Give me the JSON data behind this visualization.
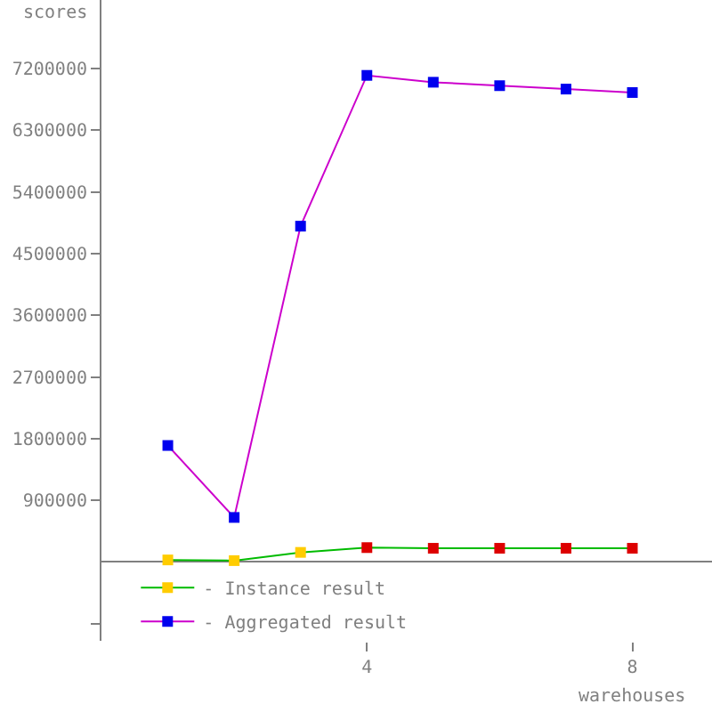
{
  "chart_data": {
    "type": "line",
    "xlabel": "warehouses",
    "ylabel": "scores",
    "x": [
      1,
      2,
      3,
      4,
      5,
      6,
      7,
      8
    ],
    "series": [
      {
        "name": "- Instance result",
        "color": "#00bb00",
        "colors": [
          "#ffcc00",
          "#ffcc00",
          "#ffcc00",
          "#dd0000",
          "#dd0000",
          "#dd0000",
          "#dd0000",
          "#dd0000"
        ],
        "values": [
          30000,
          20000,
          140000,
          210000,
          200000,
          200000,
          200000,
          200000
        ]
      },
      {
        "name": "- Aggregated result",
        "color": "#cc00cc",
        "colors": [
          "#0000ee",
          "#0000ee",
          "#0000ee",
          "#0000ee",
          "#0000ee",
          "#0000ee",
          "#0000ee",
          "#0000ee"
        ],
        "values": [
          1700000,
          650000,
          4900000,
          7100000,
          7000000,
          6950000,
          6900000,
          6850000
        ]
      }
    ],
    "xlim": [
      0,
      9.2
    ],
    "xticks": [
      4,
      8
    ],
    "ylim": [
      -1150000,
      8200000
    ],
    "yticks": [
      {
        "value": -900000,
        "label": null
      },
      900000,
      1800000,
      2700000,
      3600000,
      4500000,
      5400000,
      6300000,
      7200000
    ],
    "grid": false,
    "legend": "bottom left",
    "marker": "square",
    "line_style": "solid"
  }
}
